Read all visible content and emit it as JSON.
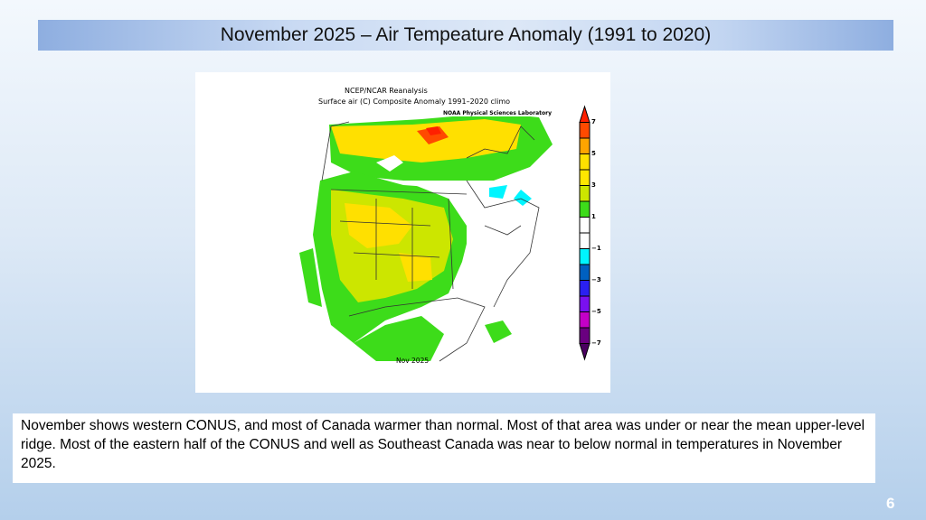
{
  "slide": {
    "title": "November 2025 – Air Tempeature Anomaly (1991 to 2020)",
    "body_text": "November shows western CONUS, and most of Canada warmer than normal. Most of that area was under or near the mean upper-level ridge. Most of the eastern half of the CONUS and well as Southeast Canada was near to below normal in temperatures in November 2025.",
    "page_number": "6"
  },
  "map": {
    "title_line1": "NCEP/NCAR Reanalysis",
    "title_line2": "Surface air (C) Composite Anomaly 1991–2020 climo",
    "credit": "NOAA Physical Sciences Laboratory",
    "date_label": "Nov 2025",
    "colorbar": {
      "tick_labels": [
        "7",
        "5",
        "3",
        "1",
        "−1",
        "−3",
        "−5",
        "−7"
      ],
      "colors": [
        "#ff2000",
        "#ff4a00",
        "#ffa400",
        "#ffe000",
        "#ffe600",
        "#cce600",
        "#3ddc1a",
        "#ffffff",
        "#ffffff",
        "#00f5ff",
        "#0060c0",
        "#2a20f0",
        "#7a10f0",
        "#c400c8",
        "#6a0080",
        "#4a0060"
      ]
    }
  }
}
